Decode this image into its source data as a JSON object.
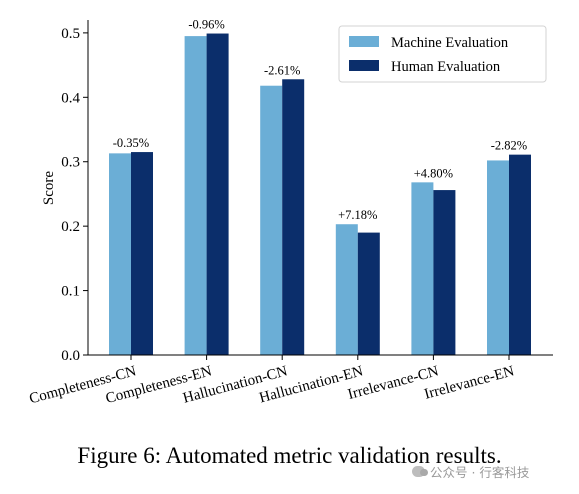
{
  "chart_data": {
    "type": "bar",
    "categories": [
      "Completeness-CN",
      "Completeness-EN",
      "Hallucination-CN",
      "Hallucination-EN",
      "Irrelevance-CN",
      "Irrelevance-EN"
    ],
    "series": [
      {
        "name": "Machine Evaluation",
        "color": "#6baed6",
        "values": [
          0.313,
          0.495,
          0.418,
          0.203,
          0.268,
          0.302
        ]
      },
      {
        "name": "Human Evaluation",
        "color": "#0b2e6b",
        "values": [
          0.315,
          0.499,
          0.428,
          0.19,
          0.256,
          0.311
        ]
      }
    ],
    "data_labels": [
      "-0.35%",
      "-0.96%",
      "-2.61%",
      "+7.18%",
      "+4.80%",
      "-2.82%"
    ],
    "ylabel": "Score",
    "xlabel": "",
    "ylim": [
      0,
      0.52
    ],
    "yticks": [
      "0.0",
      "0.1",
      "0.2",
      "0.3",
      "0.4",
      "0.5"
    ],
    "ytick_values": [
      0.0,
      0.1,
      0.2,
      0.3,
      0.4,
      0.5
    ],
    "legend_position": "top-right",
    "grid": false
  },
  "caption": "Figure 6: Automated metric validation results.",
  "watermark": {
    "icon": "wechat-icon",
    "text": "公众号 · 行客科技"
  }
}
